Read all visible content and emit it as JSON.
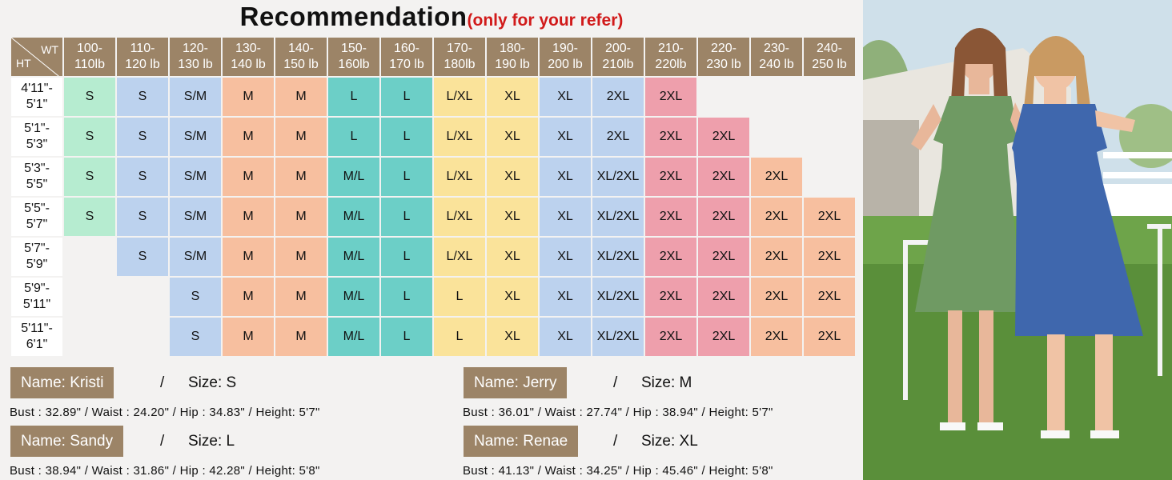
{
  "title": "Recommendation",
  "subtitle": "(only for your refer)",
  "corner": {
    "wt": "WT",
    "ht": "HT"
  },
  "weights": [
    "100-110lb",
    "110-120 lb",
    "120-130 lb",
    "130-140 lb",
    "140-150 lb",
    "150-160lb",
    "160-170 lb",
    "170-180lb",
    "180-190 lb",
    "190-200 lb",
    "200-210lb",
    "210-220lb",
    "220-230 lb",
    "230-240 lb",
    "240-250 lb"
  ],
  "rows": [
    {
      "height": "4'11\"-5'1\"",
      "sizes": [
        "S",
        "S",
        "S/M",
        "M",
        "M",
        "L",
        "L",
        "L/XL",
        "XL",
        "XL",
        "2XL",
        "2XL",
        "",
        "",
        ""
      ]
    },
    {
      "height": "5'1\"-5'3\"",
      "sizes": [
        "S",
        "S",
        "S/M",
        "M",
        "M",
        "L",
        "L",
        "L/XL",
        "XL",
        "XL",
        "2XL",
        "2XL",
        "2XL",
        "",
        ""
      ]
    },
    {
      "height": "5'3\"-5'5\"",
      "sizes": [
        "S",
        "S",
        "S/M",
        "M",
        "M",
        "M/L",
        "L",
        "L/XL",
        "XL",
        "XL",
        "XL/2XL",
        "2XL",
        "2XL",
        "2XL",
        ""
      ]
    },
    {
      "height": "5'5\"-5'7\"",
      "sizes": [
        "S",
        "S",
        "S/M",
        "M",
        "M",
        "M/L",
        "L",
        "L/XL",
        "XL",
        "XL",
        "XL/2XL",
        "2XL",
        "2XL",
        "2XL",
        "2XL"
      ]
    },
    {
      "height": "5'7\"-5'9\"",
      "sizes": [
        "",
        "S",
        "S/M",
        "M",
        "M",
        "M/L",
        "L",
        "L/XL",
        "XL",
        "XL",
        "XL/2XL",
        "2XL",
        "2XL",
        "2XL",
        "2XL"
      ]
    },
    {
      "height": "5'9\"-5'11\"",
      "sizes": [
        "",
        "",
        "S",
        "M",
        "M",
        "M/L",
        "L",
        "L",
        "XL",
        "XL",
        "XL/2XL",
        "2XL",
        "2XL",
        "2XL",
        "2XL"
      ]
    },
    {
      "height": "5'11\"-6'1\"",
      "sizes": [
        "",
        "",
        "S",
        "M",
        "M",
        "M/L",
        "L",
        "L",
        "XL",
        "XL",
        "XL/2XL",
        "2XL",
        "2XL",
        "2XL",
        "2XL"
      ]
    }
  ],
  "column_colors": [
    "#b6ecd0",
    "#bcd2ee",
    "#bcd2ee",
    "#f7bf9f",
    "#f7bf9f",
    "#6ccfc7",
    "#6ccfc7",
    "#fae39a",
    "#fae39a",
    "#bcd2ee",
    "#bcd2ee",
    "#ee9fac",
    "#ee9fac",
    "#f7bf9f",
    "#f7bf9f"
  ],
  "header_color": "#9c8467",
  "models": [
    {
      "name": "Name: Kristi",
      "size": "Size: S",
      "measurements": "Bust : 32.89\"  / Waist : 24.20\"  / Hip : 34.83\"  / Height: 5'7\""
    },
    {
      "name": "Name: Jerry",
      "size": "Size: M",
      "measurements": "Bust : 36.01\"  / Waist : 27.74\"   /  Hip : 38.94\"  / Height: 5'7\""
    },
    {
      "name": "Name: Sandy",
      "size": "Size: L",
      "measurements": "Bust : 38.94\"  / Waist : 31.86\"  / Hip : 42.28\"  / Height: 5'8\""
    },
    {
      "name": "Name: Renae",
      "size": "Size: XL",
      "measurements": "Bust : 41.13\"  / Waist : 34.25\"   /  Hip : 45.46\"  / Height: 5'8\""
    }
  ],
  "slash": "/",
  "photo": {
    "dress_colors": [
      "#6f9a63",
      "#3f67ad"
    ]
  }
}
